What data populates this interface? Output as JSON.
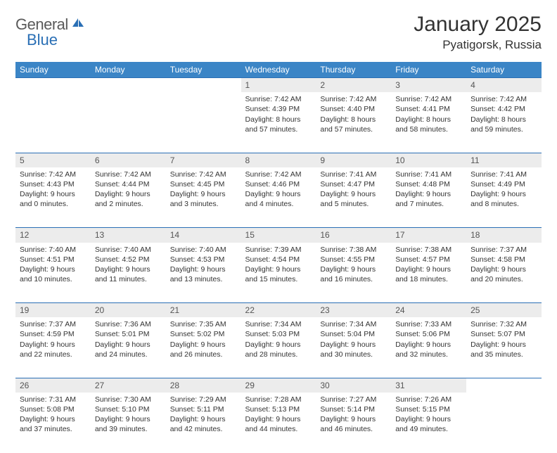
{
  "logo": {
    "text1": "General",
    "text2": "Blue"
  },
  "title": "January 2025",
  "location": "Pyatigorsk, Russia",
  "colors": {
    "header_bg": "#3b85c6",
    "border": "#2a6fb5",
    "daynum_bg": "#ececec",
    "text": "#333333"
  },
  "dayHeaders": [
    "Sunday",
    "Monday",
    "Tuesday",
    "Wednesday",
    "Thursday",
    "Friday",
    "Saturday"
  ],
  "weeks": [
    [
      {
        "blank": true
      },
      {
        "blank": true
      },
      {
        "blank": true
      },
      {
        "n": "1",
        "sr": "7:42 AM",
        "ss": "4:39 PM",
        "dl": "8 hours and 57 minutes."
      },
      {
        "n": "2",
        "sr": "7:42 AM",
        "ss": "4:40 PM",
        "dl": "8 hours and 57 minutes."
      },
      {
        "n": "3",
        "sr": "7:42 AM",
        "ss": "4:41 PM",
        "dl": "8 hours and 58 minutes."
      },
      {
        "n": "4",
        "sr": "7:42 AM",
        "ss": "4:42 PM",
        "dl": "8 hours and 59 minutes."
      }
    ],
    [
      {
        "n": "5",
        "sr": "7:42 AM",
        "ss": "4:43 PM",
        "dl": "9 hours and 0 minutes."
      },
      {
        "n": "6",
        "sr": "7:42 AM",
        "ss": "4:44 PM",
        "dl": "9 hours and 2 minutes."
      },
      {
        "n": "7",
        "sr": "7:42 AM",
        "ss": "4:45 PM",
        "dl": "9 hours and 3 minutes."
      },
      {
        "n": "8",
        "sr": "7:42 AM",
        "ss": "4:46 PM",
        "dl": "9 hours and 4 minutes."
      },
      {
        "n": "9",
        "sr": "7:41 AM",
        "ss": "4:47 PM",
        "dl": "9 hours and 5 minutes."
      },
      {
        "n": "10",
        "sr": "7:41 AM",
        "ss": "4:48 PM",
        "dl": "9 hours and 7 minutes."
      },
      {
        "n": "11",
        "sr": "7:41 AM",
        "ss": "4:49 PM",
        "dl": "9 hours and 8 minutes."
      }
    ],
    [
      {
        "n": "12",
        "sr": "7:40 AM",
        "ss": "4:51 PM",
        "dl": "9 hours and 10 minutes."
      },
      {
        "n": "13",
        "sr": "7:40 AM",
        "ss": "4:52 PM",
        "dl": "9 hours and 11 minutes."
      },
      {
        "n": "14",
        "sr": "7:40 AM",
        "ss": "4:53 PM",
        "dl": "9 hours and 13 minutes."
      },
      {
        "n": "15",
        "sr": "7:39 AM",
        "ss": "4:54 PM",
        "dl": "9 hours and 15 minutes."
      },
      {
        "n": "16",
        "sr": "7:38 AM",
        "ss": "4:55 PM",
        "dl": "9 hours and 16 minutes."
      },
      {
        "n": "17",
        "sr": "7:38 AM",
        "ss": "4:57 PM",
        "dl": "9 hours and 18 minutes."
      },
      {
        "n": "18",
        "sr": "7:37 AM",
        "ss": "4:58 PM",
        "dl": "9 hours and 20 minutes."
      }
    ],
    [
      {
        "n": "19",
        "sr": "7:37 AM",
        "ss": "4:59 PM",
        "dl": "9 hours and 22 minutes."
      },
      {
        "n": "20",
        "sr": "7:36 AM",
        "ss": "5:01 PM",
        "dl": "9 hours and 24 minutes."
      },
      {
        "n": "21",
        "sr": "7:35 AM",
        "ss": "5:02 PM",
        "dl": "9 hours and 26 minutes."
      },
      {
        "n": "22",
        "sr": "7:34 AM",
        "ss": "5:03 PM",
        "dl": "9 hours and 28 minutes."
      },
      {
        "n": "23",
        "sr": "7:34 AM",
        "ss": "5:04 PM",
        "dl": "9 hours and 30 minutes."
      },
      {
        "n": "24",
        "sr": "7:33 AM",
        "ss": "5:06 PM",
        "dl": "9 hours and 32 minutes."
      },
      {
        "n": "25",
        "sr": "7:32 AM",
        "ss": "5:07 PM",
        "dl": "9 hours and 35 minutes."
      }
    ],
    [
      {
        "n": "26",
        "sr": "7:31 AM",
        "ss": "5:08 PM",
        "dl": "9 hours and 37 minutes."
      },
      {
        "n": "27",
        "sr": "7:30 AM",
        "ss": "5:10 PM",
        "dl": "9 hours and 39 minutes."
      },
      {
        "n": "28",
        "sr": "7:29 AM",
        "ss": "5:11 PM",
        "dl": "9 hours and 42 minutes."
      },
      {
        "n": "29",
        "sr": "7:28 AM",
        "ss": "5:13 PM",
        "dl": "9 hours and 44 minutes."
      },
      {
        "n": "30",
        "sr": "7:27 AM",
        "ss": "5:14 PM",
        "dl": "9 hours and 46 minutes."
      },
      {
        "n": "31",
        "sr": "7:26 AM",
        "ss": "5:15 PM",
        "dl": "9 hours and 49 minutes."
      },
      {
        "blank": true
      }
    ]
  ],
  "labels": {
    "sunrise": "Sunrise: ",
    "sunset": "Sunset: ",
    "daylight": "Daylight: "
  }
}
